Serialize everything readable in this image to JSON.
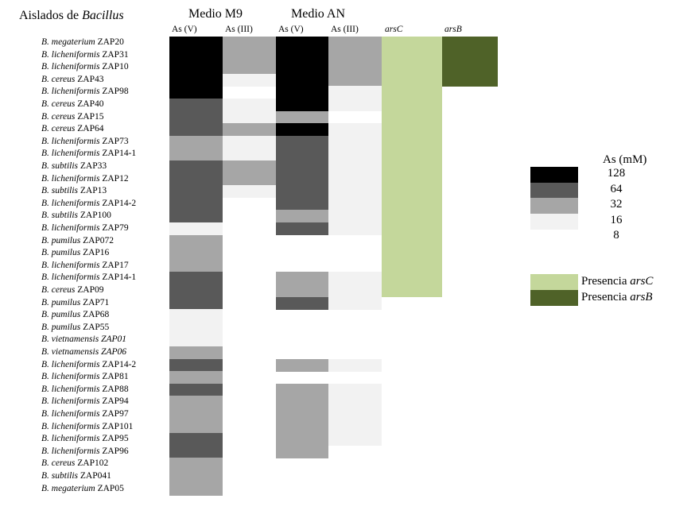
{
  "title": {
    "prefix": "Aislados de ",
    "genus": "Bacillus"
  },
  "groups": [
    "Medio M9",
    "Medio AN"
  ],
  "columns": [
    {
      "label": "As (V)",
      "italic": false
    },
    {
      "label": "As (III)",
      "italic": false
    },
    {
      "label": "As (V)",
      "italic": false
    },
    {
      "label": "As (III)",
      "italic": false
    },
    {
      "label": "arsC",
      "italic": true
    },
    {
      "label": "arsB",
      "italic": true
    }
  ],
  "colors": {
    "128": "#000000",
    "64": "#595959",
    "32": "#a6a6a6",
    "16": "#f2f2f2",
    "arsC": "#c4d79b",
    "arsB": "#4f6228"
  },
  "chart_data": {
    "type": "heatmap",
    "isolates": [
      {
        "genus": "B. megaterium",
        "strain": "ZAP20",
        "strain_italic": false
      },
      {
        "genus": "B. licheniformis",
        "strain": "ZAP31",
        "strain_italic": false
      },
      {
        "genus": "B. licheniformis",
        "strain": "ZAP10",
        "strain_italic": false
      },
      {
        "genus": "B. cereus",
        "strain": "ZAP43",
        "strain_italic": false
      },
      {
        "genus": "B. licheniformis",
        "strain": "ZAP98",
        "strain_italic": false
      },
      {
        "genus": "B. cereus",
        "strain": "ZAP40",
        "strain_italic": false
      },
      {
        "genus": "B. cereus",
        "strain": "ZAP15",
        "strain_italic": false
      },
      {
        "genus": "B. cereus",
        "strain": "ZAP64",
        "strain_italic": false
      },
      {
        "genus": "B. licheniformis",
        "strain": "ZAP73",
        "strain_italic": false
      },
      {
        "genus": "B. licheniformis",
        "strain": "ZAP14-1",
        "strain_italic": false
      },
      {
        "genus": "B. subtilis",
        "strain": "ZAP33",
        "strain_italic": false
      },
      {
        "genus": "B. licheniformis",
        "strain": "ZAP12",
        "strain_italic": false
      },
      {
        "genus": "B. subtilis",
        "strain": "ZAP13",
        "strain_italic": false
      },
      {
        "genus": "B. licheniformis",
        "strain": "ZAP14-2",
        "strain_italic": false
      },
      {
        "genus": "B. subtilis",
        "strain": "ZAP100",
        "strain_italic": false
      },
      {
        "genus": "B. licheniformis",
        "strain": "ZAP79",
        "strain_italic": false
      },
      {
        "genus": "B. pumilus",
        "strain": "ZAP072",
        "strain_italic": false
      },
      {
        "genus": "B. pumilus",
        "strain": "ZAP16",
        "strain_italic": false
      },
      {
        "genus": "B. licheniformis",
        "strain": "ZAP17",
        "strain_italic": false
      },
      {
        "genus": "B. licheniformis",
        "strain": "ZAP14-1",
        "strain_italic": false
      },
      {
        "genus": "B. cereus",
        "strain": "ZAP09",
        "strain_italic": false
      },
      {
        "genus": "B. pumilus",
        "strain": "ZAP71",
        "strain_italic": false
      },
      {
        "genus": "B. pumilus",
        "strain": "ZAP68",
        "strain_italic": false
      },
      {
        "genus": "B. pumilus",
        "strain": "ZAP55",
        "strain_italic": false
      },
      {
        "genus": "B. vietnamensis",
        "strain": "ZAP01",
        "strain_italic": true
      },
      {
        "genus": "B. vietnamensis",
        "strain": "ZAP06",
        "strain_italic": true
      },
      {
        "genus": "B. licheniformis",
        "strain": "ZAP14-2",
        "strain_italic": false
      },
      {
        "genus": "B. licheniformis",
        "strain": "ZAP81",
        "strain_italic": false
      },
      {
        "genus": "B. licheniformis",
        "strain": "ZAP88",
        "strain_italic": false
      },
      {
        "genus": "B. licheniformis",
        "strain": "ZAP94",
        "strain_italic": false
      },
      {
        "genus": "B. licheniformis",
        "strain": "ZAP97",
        "strain_italic": false
      },
      {
        "genus": "B. licheniformis",
        "strain": "ZAP101",
        "strain_italic": false
      },
      {
        "genus": "B. licheniformis",
        "strain": "ZAP95",
        "strain_italic": false
      },
      {
        "genus": "B. licheniformis",
        "strain": "ZAP96",
        "strain_italic": false
      },
      {
        "genus": "B. cereus",
        "strain": "ZAP102",
        "strain_italic": false
      },
      {
        "genus": "B. subtilis",
        "strain": "ZAP041",
        "strain_italic": false
      },
      {
        "genus": "B. megaterium",
        "strain": "ZAP05",
        "strain_italic": false
      }
    ],
    "m9_as_v": [
      128,
      128,
      128,
      128,
      128,
      64,
      64,
      64,
      32,
      32,
      64,
      64,
      64,
      64,
      64,
      16,
      32,
      32,
      32,
      64,
      64,
      64,
      16,
      16,
      16,
      32,
      64,
      32,
      64,
      32,
      32,
      32,
      64,
      64,
      32,
      32,
      32
    ],
    "m9_as_iii": [
      32,
      32,
      32,
      16,
      null,
      16,
      16,
      32,
      16,
      16,
      32,
      32,
      16,
      null,
      null,
      null,
      null,
      null,
      null,
      null,
      null,
      null,
      null,
      null,
      null,
      null,
      null,
      null,
      null,
      null,
      null,
      null,
      null,
      null,
      null,
      null,
      null
    ],
    "an_as_v": [
      128,
      128,
      128,
      128,
      128,
      128,
      32,
      128,
      64,
      64,
      64,
      64,
      64,
      64,
      32,
      64,
      null,
      null,
      null,
      32,
      32,
      64,
      null,
      null,
      null,
      null,
      32,
      null,
      32,
      32,
      32,
      32,
      32,
      32,
      null,
      null,
      null
    ],
    "an_as_iii": [
      32,
      32,
      32,
      32,
      16,
      16,
      null,
      16,
      16,
      16,
      16,
      16,
      16,
      16,
      16,
      16,
      null,
      null,
      null,
      16,
      16,
      16,
      null,
      null,
      null,
      null,
      16,
      null,
      16,
      16,
      16,
      16,
      16,
      null,
      null,
      null,
      null
    ],
    "arsC": [
      1,
      1,
      1,
      1,
      1,
      1,
      1,
      1,
      1,
      1,
      1,
      1,
      1,
      1,
      1,
      1,
      1,
      1,
      1,
      1,
      1,
      0,
      0,
      0,
      0,
      0,
      0,
      0,
      0,
      0,
      0,
      0,
      0,
      0,
      0,
      0,
      0
    ],
    "arsB": [
      1,
      1,
      1,
      1,
      0,
      0,
      0,
      0,
      0,
      0,
      0,
      0,
      0,
      0,
      0,
      0,
      0,
      0,
      0,
      0,
      0,
      0,
      0,
      0,
      0,
      0,
      0,
      0,
      0,
      0,
      0,
      0,
      0,
      0,
      0,
      0,
      0
    ],
    "legend": {
      "title": "As (mM)",
      "levels": [
        "128",
        "64",
        "32",
        "16",
        "8"
      ],
      "genes": [
        {
          "label_prefix": "Presencia ",
          "gene": "arsC"
        },
        {
          "label_prefix": "Presencia ",
          "gene": "arsB"
        }
      ]
    }
  }
}
